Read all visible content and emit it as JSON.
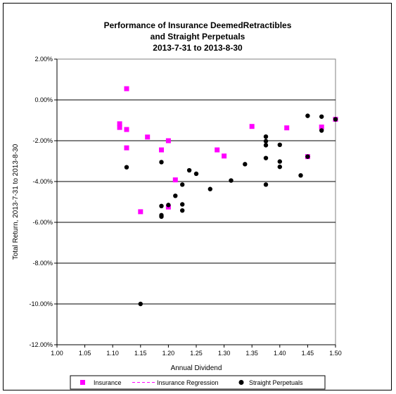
{
  "chart_data": {
    "type": "scatter",
    "title": [
      "Performance of Insurance DeemedRetractibles",
      "and Straight Perpetuals",
      "2013-7-31 to 2013-8-30"
    ],
    "xlabel": "Annual Dividend",
    "ylabel": "Total Return, 2013-7-31 to 2013-8-30",
    "xlim": [
      1.0,
      1.5
    ],
    "ylim": [
      -12.0,
      2.0
    ],
    "x_ticks": [
      "1.00",
      "1.05",
      "1.10",
      "1.15",
      "1.20",
      "1.25",
      "1.30",
      "1.35",
      "1.40",
      "1.45",
      "1.50"
    ],
    "y_ticks": [
      "2.00%",
      "0.00%",
      "-2.00%",
      "-4.00%",
      "-6.00%",
      "-8.00%",
      "-10.00%",
      "-12.00%"
    ],
    "grid": "horizontal",
    "legend_position": "bottom",
    "series": [
      {
        "name": "Insurance",
        "marker": "square",
        "color": "#ff00ff",
        "points": [
          [
            1.125,
            0.55
          ],
          [
            1.1125,
            -1.17
          ],
          [
            1.1125,
            -1.35
          ],
          [
            1.125,
            -1.45
          ],
          [
            1.125,
            -2.35
          ],
          [
            1.1625,
            -1.82
          ],
          [
            1.1875,
            -2.45
          ],
          [
            1.2,
            -2.0
          ],
          [
            1.2,
            -5.25
          ],
          [
            1.2125,
            -3.92
          ],
          [
            1.15,
            -5.48
          ],
          [
            1.2875,
            -2.45
          ],
          [
            1.3,
            -2.75
          ],
          [
            1.35,
            -1.3
          ],
          [
            1.4125,
            -1.37
          ],
          [
            1.45,
            -2.78
          ],
          [
            1.475,
            -1.33
          ],
          [
            1.5,
            -0.95
          ]
        ]
      },
      {
        "name": "Insurance Regression",
        "line": "dashed",
        "color": "#ff00ff",
        "points": []
      },
      {
        "name": "Straight Perpetuals",
        "marker": "circle",
        "color": "#000000",
        "points": [
          [
            1.125,
            -3.3
          ],
          [
            1.1875,
            -3.05
          ],
          [
            1.1875,
            -5.2
          ],
          [
            1.1875,
            -5.65
          ],
          [
            1.1875,
            -5.72
          ],
          [
            1.2,
            -5.15
          ],
          [
            1.2125,
            -4.7
          ],
          [
            1.225,
            -4.15
          ],
          [
            1.225,
            -5.12
          ],
          [
            1.225,
            -5.42
          ],
          [
            1.2375,
            -3.45
          ],
          [
            1.25,
            -3.62
          ],
          [
            1.15,
            -10.0
          ],
          [
            1.275,
            -4.37
          ],
          [
            1.3125,
            -3.95
          ],
          [
            1.3375,
            -3.15
          ],
          [
            1.375,
            -1.8
          ],
          [
            1.375,
            -2.02
          ],
          [
            1.375,
            -2.22
          ],
          [
            1.375,
            -2.85
          ],
          [
            1.375,
            -4.15
          ],
          [
            1.4,
            -2.2
          ],
          [
            1.4,
            -3.02
          ],
          [
            1.4,
            -3.28
          ],
          [
            1.4375,
            -3.7
          ],
          [
            1.45,
            -0.78
          ],
          [
            1.45,
            -2.78
          ],
          [
            1.475,
            -0.82
          ],
          [
            1.475,
            -1.5
          ],
          [
            1.5,
            -0.95
          ]
        ]
      }
    ]
  }
}
